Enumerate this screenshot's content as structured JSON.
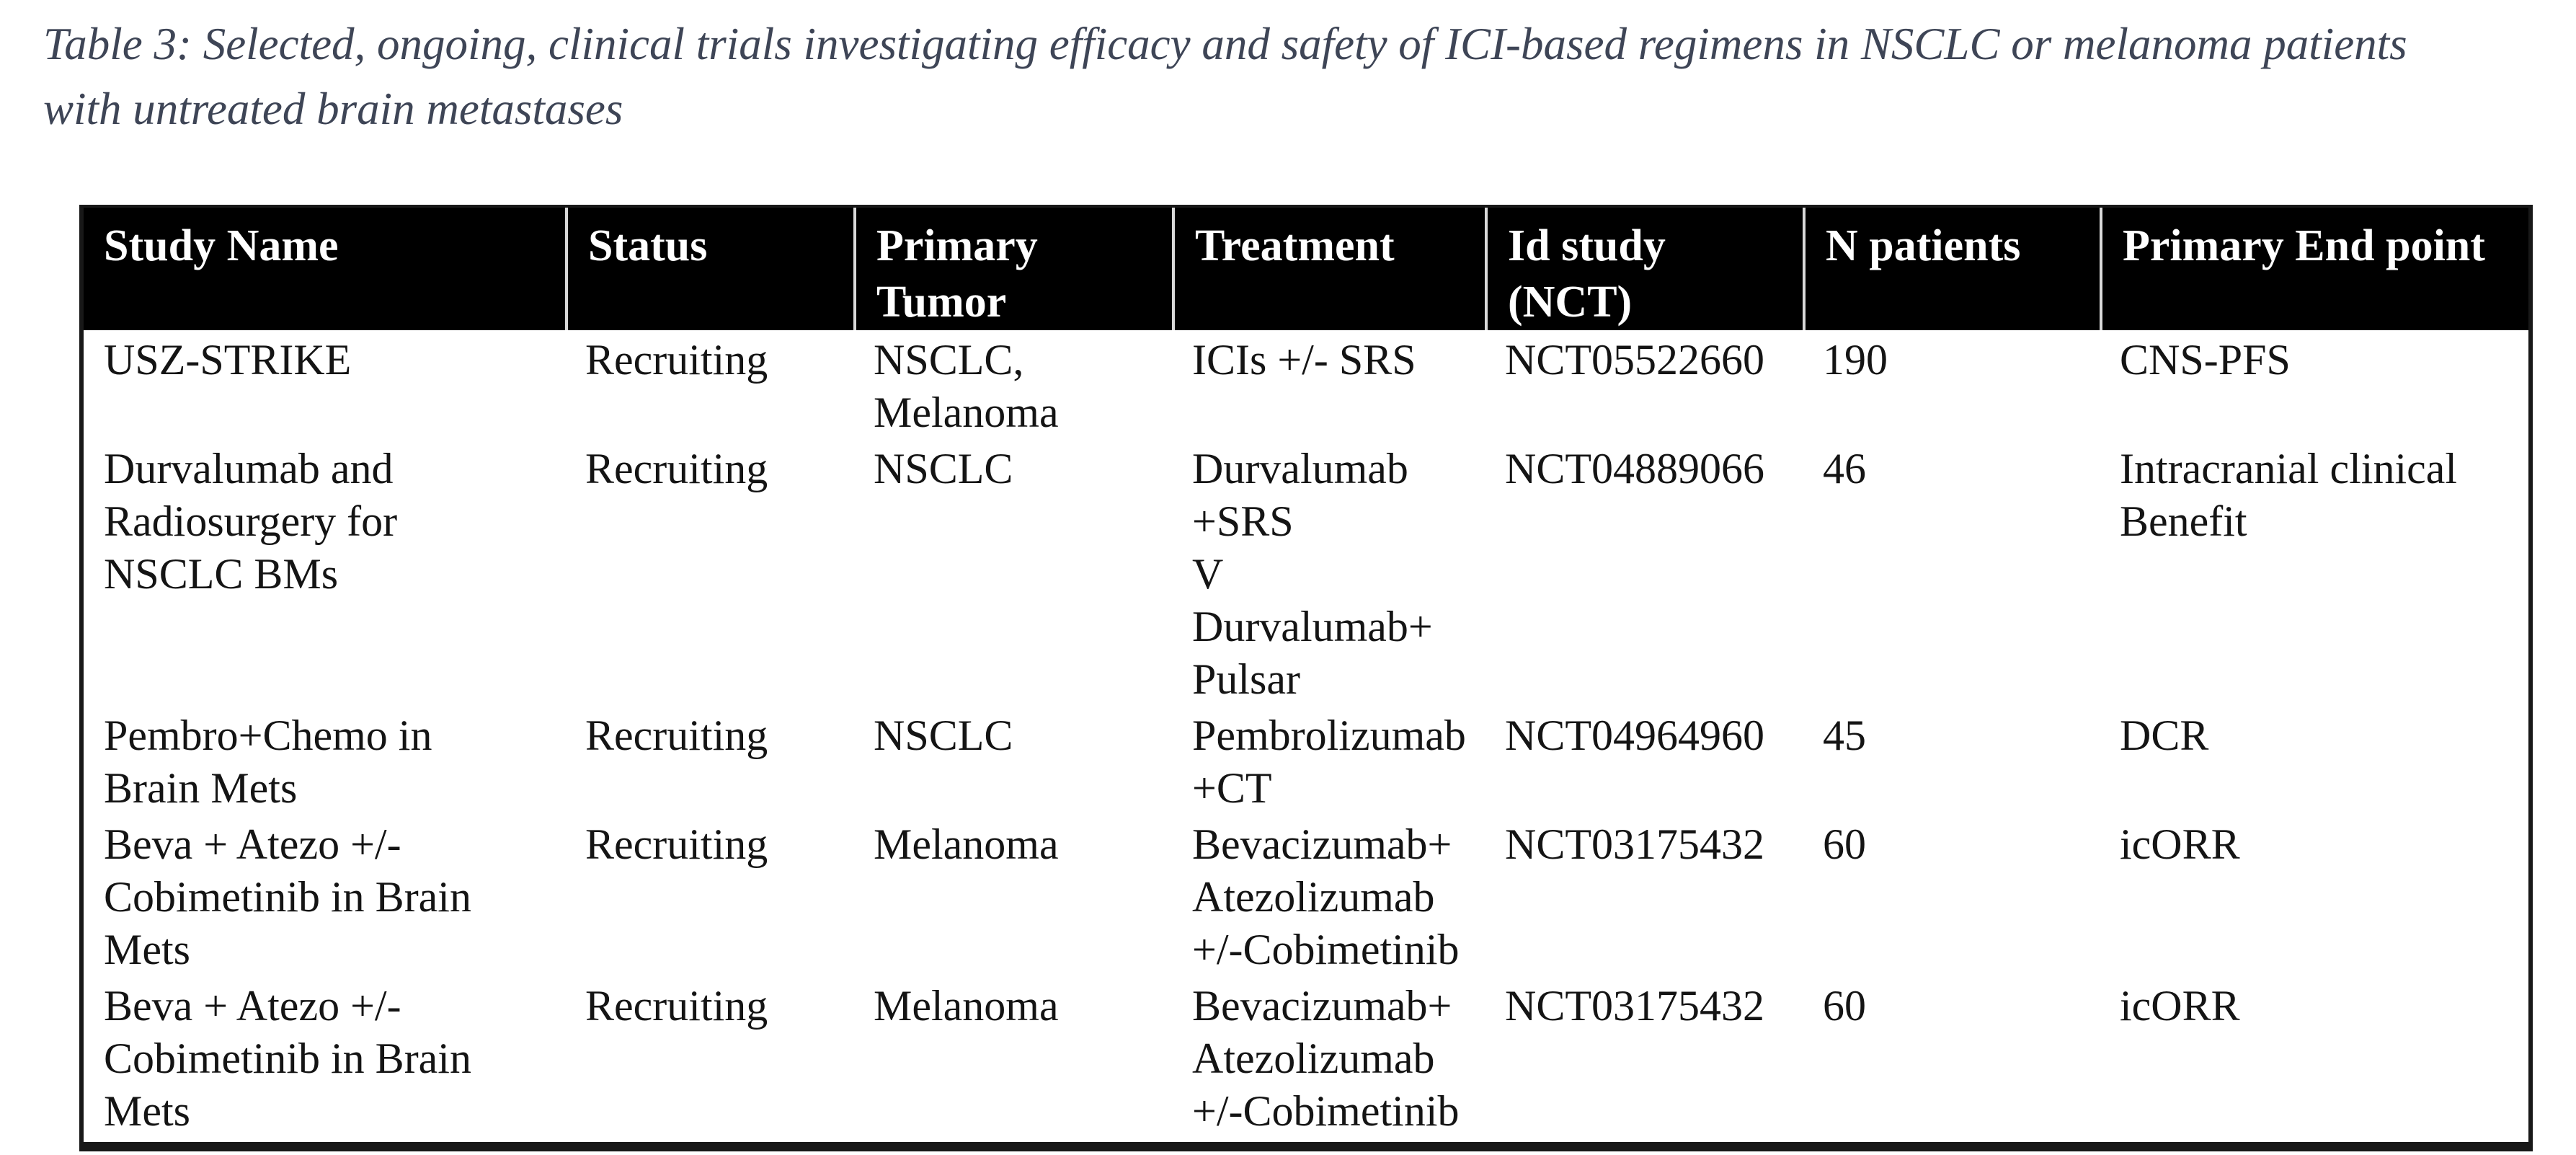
{
  "page": {
    "caption_line1": "Table 3: Selected, ongoing, clinical trials investigating efficacy and safety of ICI-based regimens in NSCLC or melanoma patients",
    "caption_line2": "with untreated brain metastases",
    "caption_color": "#3e4556",
    "background_color": "#ffffff"
  },
  "table": {
    "header_bg": "#000000",
    "header_text_color": "#ffffff",
    "body_text_color": "#141414",
    "border_color": "#181818",
    "columns": [
      {
        "label": "Study Name"
      },
      {
        "label": "Status"
      },
      {
        "label": "Primary\nTumor"
      },
      {
        "label": "Treatment"
      },
      {
        "label": "Id study\n(NCT)"
      },
      {
        "label": "N patients"
      },
      {
        "label": "Primary End point"
      }
    ],
    "rows": [
      [
        "USZ-STRIKE",
        "Recruiting",
        "NSCLC,\nMelanoma",
        "ICIs +/- SRS",
        "NCT05522660",
        "190",
        "CNS-PFS"
      ],
      [
        "Durvalumab and\nRadiosurgery for\nNSCLC BMs",
        "Recruiting",
        "NSCLC",
        "Durvalumab\n+SRS\nV\nDurvalumab+\nPulsar",
        "NCT04889066",
        "46",
        "Intracranial clinical\nBenefit"
      ],
      [
        "Pembro+Chemo in\nBrain Mets",
        "Recruiting",
        "NSCLC",
        "Pembrolizumab\n+CT",
        "NCT04964960",
        "45",
        "DCR"
      ],
      [
        "Beva + Atezo +/-\nCobimetinib in Brain\nMets",
        "Recruiting",
        "Melanoma",
        "Bevacizumab+\nAtezolizumab\n+/-Cobimetinib",
        "NCT03175432",
        "60",
        "icORR"
      ],
      [
        "Beva + Atezo +/-\nCobimetinib in Brain\nMets",
        "Recruiting",
        "Melanoma",
        "Bevacizumab+\nAtezolizumab\n+/-Cobimetinib",
        "NCT03175432",
        "60",
        "icORR"
      ]
    ]
  }
}
